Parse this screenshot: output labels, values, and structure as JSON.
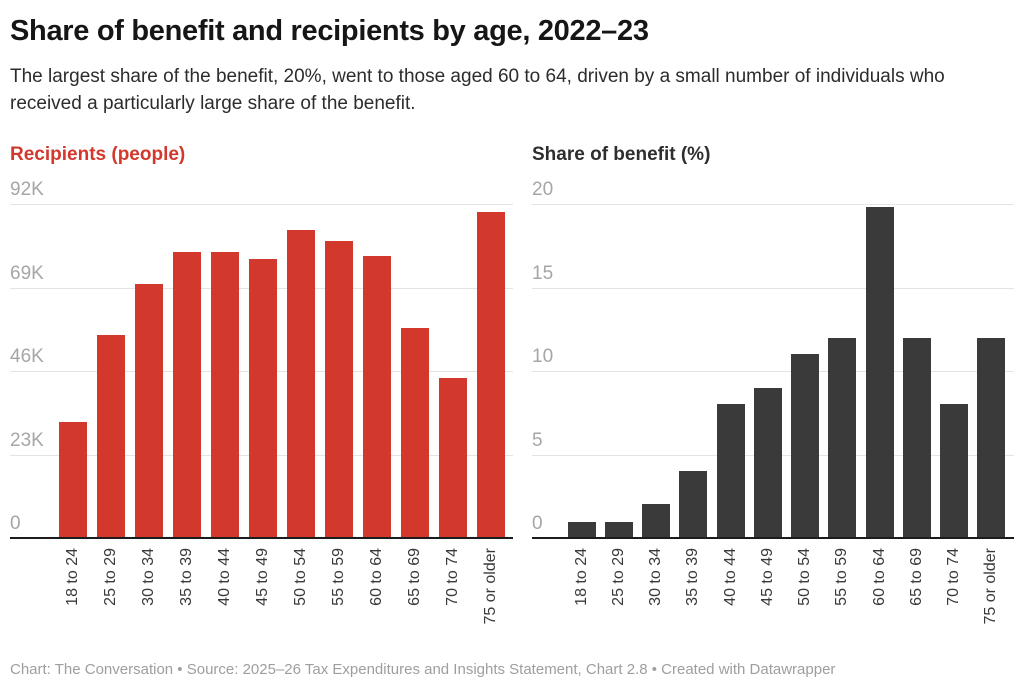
{
  "page": {
    "title": "Share of benefit and recipients by age, 2022–23",
    "description": "The largest share of the benefit, 20%, went to those aged 60 to 64, driven by a small number of individuals who received a particularly large share of the benefit.",
    "footer": "Chart: The Conversation • Source: 2025–26 Tax Expenditures and Insights Statement, Chart 2.8 • Created with Datawrapper"
  },
  "colors": {
    "recipients_accent": "#d2382c",
    "share_accent": "#3a3a3a",
    "gridline": "#e4e4e4",
    "axis_line": "#1c1c1c",
    "tick_label": "#a6a6a6",
    "footer_text": "#9e9e9e"
  },
  "chart_data": [
    {
      "type": "bar",
      "title": "Recipients (people)",
      "title_color": "#d2382c",
      "bar_color": "#d2382c",
      "categories": [
        "18 to 24",
        "25 to 29",
        "30 to 34",
        "35 to 39",
        "40 to 44",
        "45 to 49",
        "50 to 54",
        "55 to 59",
        "60 to 64",
        "65 to 69",
        "70 to 74",
        "75 or older"
      ],
      "values": [
        32000,
        56000,
        70000,
        79000,
        79000,
        77000,
        85000,
        82000,
        78000,
        58000,
        44000,
        90000
      ],
      "xlabel": "",
      "ylabel": "Recipients (people)",
      "ylim": [
        0,
        92000
      ],
      "grid": true,
      "legend": "none",
      "yticks": [
        {
          "value": 0,
          "label": "0"
        },
        {
          "value": 23000,
          "label": "23K"
        },
        {
          "value": 46000,
          "label": "46K"
        },
        {
          "value": 69000,
          "label": "69K"
        },
        {
          "value": 92000,
          "label": "92K"
        }
      ]
    },
    {
      "type": "bar",
      "title": "Share of benefit (%)",
      "title_color": "#2e2e2e",
      "bar_color": "#3a3a3a",
      "categories": [
        "18 to 24",
        "25 to 29",
        "30 to 34",
        "35 to 39",
        "40 to 44",
        "45 to 49",
        "50 to 54",
        "55 to 59",
        "60 to 64",
        "65 to 69",
        "70 to 74",
        "75 or older"
      ],
      "values": [
        0.9,
        0.9,
        2,
        4,
        8,
        9,
        11,
        12,
        19.9,
        12,
        8,
        12
      ],
      "xlabel": "",
      "ylabel": "Share of benefit (%)",
      "ylim": [
        0,
        20
      ],
      "grid": true,
      "legend": "none",
      "yticks": [
        {
          "value": 0,
          "label": "0"
        },
        {
          "value": 5,
          "label": "5"
        },
        {
          "value": 10,
          "label": "10"
        },
        {
          "value": 15,
          "label": "15"
        },
        {
          "value": 20,
          "label": "20"
        }
      ]
    }
  ]
}
